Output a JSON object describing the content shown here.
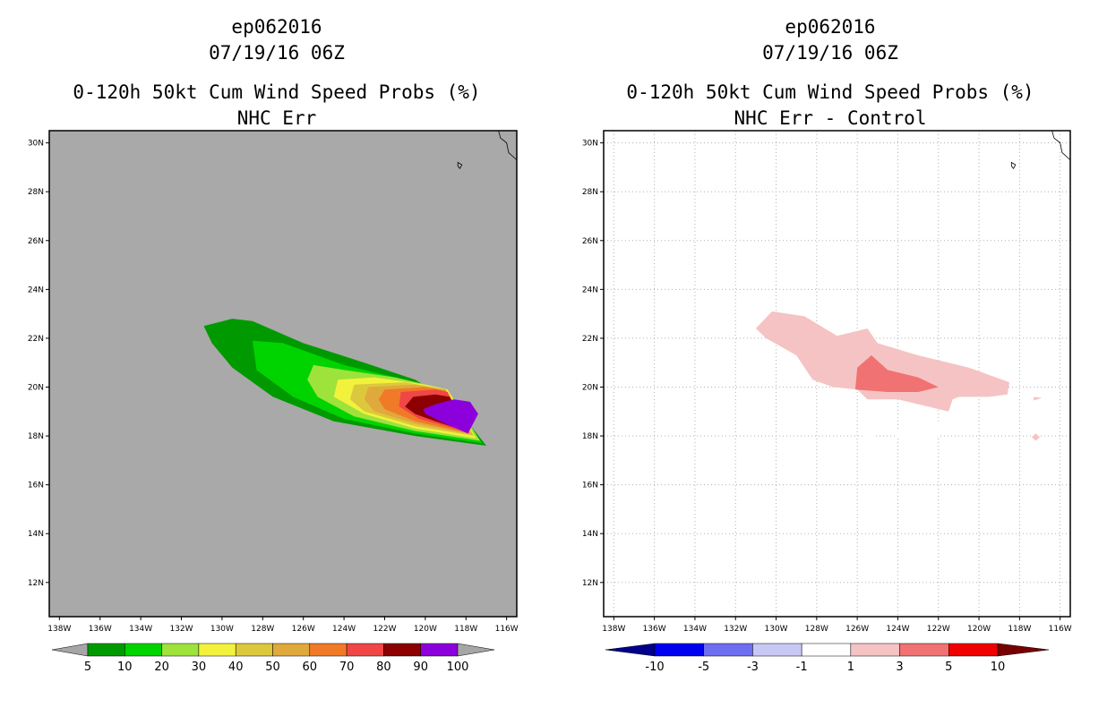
{
  "colors": {
    "land_gray": "#a9a9a9",
    "map_bg_right": "#ffffff",
    "grid": "#b0b0b0"
  },
  "panels": [
    {
      "title_line1": "ep062016",
      "title_line2": "07/19/16 06Z",
      "title_line3": "0-120h 50kt Cum Wind Speed Probs (%)",
      "title_line4": "NHC Err"
    },
    {
      "title_line1": "ep062016",
      "title_line2": "07/19/16 06Z",
      "title_line3": "0-120h 50kt Cum Wind Speed Probs (%)",
      "title_line4": "NHC Err - Control"
    }
  ],
  "chart_data": [
    {
      "type": "filled-contour",
      "title": "0-120h 50kt Cum Wind Speed Probs (%) NHC Err",
      "storm": "ep062016",
      "time": "07/19/16 06Z",
      "xlim": [
        -138.5,
        -115.5
      ],
      "ylim": [
        10.6,
        30.5
      ],
      "x_ticks": [
        -138,
        -136,
        -134,
        -132,
        -130,
        -128,
        -126,
        -124,
        -122,
        -120,
        -118,
        -116
      ],
      "x_tick_labels": [
        "138W",
        "136W",
        "134W",
        "132W",
        "130W",
        "128W",
        "126W",
        "124W",
        "122W",
        "120W",
        "118W",
        "116W"
      ],
      "y_ticks": [
        12,
        14,
        16,
        18,
        20,
        22,
        24,
        26,
        28,
        30
      ],
      "y_tick_labels": [
        "12N",
        "14N",
        "16N",
        "18N",
        "20N",
        "22N",
        "24N",
        "26N",
        "28N",
        "30N"
      ],
      "colorbar": {
        "levels": [
          5,
          10,
          20,
          30,
          40,
          50,
          60,
          70,
          80,
          90,
          100
        ],
        "level_labels": [
          "5",
          "10",
          "20",
          "30",
          "40",
          "50",
          "60",
          "70",
          "80",
          "90",
          "100"
        ],
        "colors": [
          "#a6a6a6",
          "#009a00",
          "#00d400",
          "#9ee23c",
          "#f2f23c",
          "#dcc83c",
          "#e0a93c",
          "#f07a28",
          "#f04646",
          "#8c0000",
          "#8c00dc",
          "#a6a6a6"
        ]
      },
      "contours": [
        {
          "level": 5,
          "points": [
            [
              -130.9,
              22.5
            ],
            [
              -129.5,
              22.8
            ],
            [
              -128.5,
              22.7
            ],
            [
              -126,
              21.8
            ],
            [
              -123,
              21
            ],
            [
              -120.5,
              20.3
            ],
            [
              -118.7,
              19.4
            ],
            [
              -117,
              17.6
            ],
            [
              -120.5,
              18
            ],
            [
              -124.5,
              18.6
            ],
            [
              -127.5,
              19.6
            ],
            [
              -129.5,
              20.8
            ],
            [
              -130.5,
              21.8
            ]
          ]
        },
        {
          "level": 10,
          "points": [
            [
              -128.5,
              21.9
            ],
            [
              -127,
              21.8
            ],
            [
              -124,
              20.9
            ],
            [
              -121,
              20.3
            ],
            [
              -118.7,
              19.4
            ],
            [
              -117.2,
              17.7
            ],
            [
              -120.5,
              18.1
            ],
            [
              -124,
              18.7
            ],
            [
              -126.5,
              19.6
            ],
            [
              -128.3,
              20.7
            ]
          ]
        },
        {
          "level": 20,
          "points": [
            [
              -125.5,
              20.9
            ],
            [
              -124,
              20.7
            ],
            [
              -121.5,
              20.4
            ],
            [
              -118.9,
              19.9
            ],
            [
              -117.3,
              17.8
            ],
            [
              -120.5,
              18.2
            ],
            [
              -123.5,
              18.8
            ],
            [
              -125.3,
              19.6
            ],
            [
              -125.8,
              20.3
            ]
          ]
        },
        {
          "level": 30,
          "points": [
            [
              -124.3,
              20.3
            ],
            [
              -122.5,
              20.4
            ],
            [
              -120,
              20.1
            ],
            [
              -118.9,
              19.9
            ],
            [
              -117.5,
              17.9
            ],
            [
              -120.5,
              18.3
            ],
            [
              -123,
              18.9
            ],
            [
              -124.5,
              19.6
            ]
          ]
        },
        {
          "level": 40,
          "points": [
            [
              -123.5,
              20.1
            ],
            [
              -121,
              20.2
            ],
            [
              -119,
              19.9
            ],
            [
              -117.6,
              18
            ],
            [
              -120.5,
              18.4
            ],
            [
              -123,
              19
            ],
            [
              -123.7,
              19.5
            ]
          ]
        },
        {
          "level": 50,
          "points": [
            [
              -122.8,
              20
            ],
            [
              -120.5,
              20.1
            ],
            [
              -119,
              19.9
            ],
            [
              -117.7,
              18.05
            ],
            [
              -120.5,
              18.5
            ],
            [
              -122.5,
              19
            ],
            [
              -123,
              19.5
            ]
          ]
        },
        {
          "level": 60,
          "points": [
            [
              -122,
              19.9
            ],
            [
              -120,
              20
            ],
            [
              -119,
              19.85
            ],
            [
              -117.8,
              18.1
            ],
            [
              -120.5,
              18.6
            ],
            [
              -122,
              19.1
            ],
            [
              -122.3,
              19.5
            ]
          ]
        },
        {
          "level": 70,
          "points": [
            [
              -121.2,
              19.8
            ],
            [
              -119.5,
              19.9
            ],
            [
              -118.9,
              19.8
            ],
            [
              -117.9,
              18.15
            ],
            [
              -120.3,
              18.7
            ],
            [
              -121.3,
              19.2
            ]
          ]
        },
        {
          "level": 80,
          "points": [
            [
              -120.6,
              19.6
            ],
            [
              -119.5,
              19.7
            ],
            [
              -118.8,
              19.6
            ],
            [
              -118,
              18.2
            ],
            [
              -119.5,
              18.6
            ],
            [
              -120.5,
              18.9
            ],
            [
              -121,
              19.2
            ]
          ]
        },
        {
          "level": 90,
          "points": [
            [
              -119.5,
              19.3
            ],
            [
              -118.6,
              19.5
            ],
            [
              -117.8,
              19.4
            ],
            [
              -117.4,
              18.9
            ],
            [
              -117.9,
              18.1
            ],
            [
              -119,
              18.5
            ],
            [
              -120,
              18.9
            ],
            [
              -120.1,
              19.1
            ]
          ]
        }
      ]
    },
    {
      "type": "filled-contour",
      "title": "0-120h 50kt Cum Wind Speed Probs (%) NHC Err - Control",
      "storm": "ep062016",
      "time": "07/19/16 06Z",
      "xlim": [
        -138.5,
        -115.5
      ],
      "ylim": [
        10.6,
        30.5
      ],
      "grid": true,
      "x_ticks": [
        -138,
        -136,
        -134,
        -132,
        -130,
        -128,
        -126,
        -124,
        -122,
        -120,
        -118,
        -116
      ],
      "x_tick_labels": [
        "138W",
        "136W",
        "134W",
        "132W",
        "130W",
        "128W",
        "126W",
        "124W",
        "122W",
        "120W",
        "118W",
        "116W"
      ],
      "y_ticks": [
        12,
        14,
        16,
        18,
        20,
        22,
        24,
        26,
        28,
        30
      ],
      "y_tick_labels": [
        "12N",
        "14N",
        "16N",
        "18N",
        "20N",
        "22N",
        "24N",
        "26N",
        "28N",
        "30N"
      ],
      "colorbar": {
        "levels": [
          -10,
          -5,
          -3,
          -1,
          1,
          3,
          5,
          10
        ],
        "level_labels": [
          "-10",
          "-5",
          "-3",
          "-1",
          "1",
          "3",
          "5",
          "10"
        ],
        "colors": [
          "#00008c",
          "#0000f0",
          "#6e6ef0",
          "#c8c8f5",
          "#ffffff",
          "#f5c3c3",
          "#f07272",
          "#f00000",
          "#780000"
        ]
      },
      "contours": [
        {
          "level": 1,
          "points": [
            [
              -131,
              22.4
            ],
            [
              -130.2,
              23.1
            ],
            [
              -128.6,
              22.9
            ],
            [
              -127,
              22.1
            ],
            [
              -125.5,
              22.4
            ],
            [
              -125,
              21.8
            ],
            [
              -123,
              21.3
            ],
            [
              -120.5,
              20.8
            ],
            [
              -118.5,
              20.2
            ],
            [
              -118.6,
              19.7
            ],
            [
              -119.5,
              19.6
            ],
            [
              -121,
              19.6
            ],
            [
              -121.3,
              19.5
            ],
            [
              -121.5,
              19
            ],
            [
              -124,
              19.5
            ],
            [
              -125.5,
              19.5
            ],
            [
              -126,
              19.9
            ],
            [
              -127.2,
              20
            ],
            [
              -128.2,
              20.3
            ],
            [
              -129,
              21.3
            ],
            [
              -130.5,
              22
            ]
          ]
        },
        {
          "level": 1,
          "points": [
            [
              -117.3,
              19.6
            ],
            [
              -116.9,
              19.55
            ],
            [
              -117.3,
              19.45
            ]
          ]
        },
        {
          "level": 1,
          "points": [
            [
              -117.2,
              18.1
            ],
            [
              -117,
              17.95
            ],
            [
              -117.2,
              17.8
            ],
            [
              -117.4,
              17.95
            ]
          ]
        },
        {
          "level": 3,
          "points": [
            [
              -126,
              20.8
            ],
            [
              -125.3,
              21.3
            ],
            [
              -124.5,
              20.7
            ],
            [
              -123,
              20.4
            ],
            [
              -122,
              20
            ],
            [
              -123,
              19.8
            ],
            [
              -124.5,
              19.8
            ],
            [
              -126.1,
              19.9
            ]
          ]
        },
        {
          "level": -1,
          "points": [
            [
              -124.2,
              18.2
            ],
            [
              -123,
              18.6
            ],
            [
              -120.5,
              18.6
            ],
            [
              -120.5,
              18.3
            ],
            [
              -121.5,
              18.1
            ],
            [
              -122.5,
              17.9
            ],
            [
              -124,
              17.9
            ]
          ]
        },
        {
          "level": -1,
          "points": [
            [
              -125.5,
              18.55
            ],
            [
              -125,
              18.2
            ],
            [
              -125.4,
              17.8
            ],
            [
              -126,
              18.15
            ]
          ]
        }
      ]
    }
  ]
}
